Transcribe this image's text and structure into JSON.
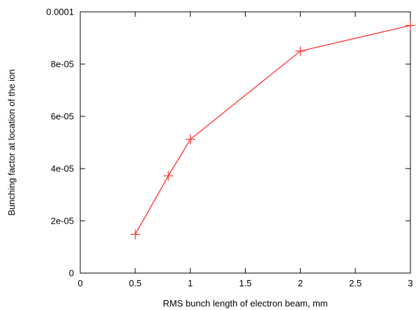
{
  "chart_data": {
    "type": "line",
    "title": "",
    "xlabel": "RMS bunch length of electron beam, mm",
    "ylabel": "Bunching factor at location of the ion",
    "xlim": [
      0,
      3
    ],
    "ylim": [
      0,
      0.0001
    ],
    "x_ticks": [
      0,
      0.5,
      1,
      1.5,
      2,
      2.5,
      3
    ],
    "x_tick_labels": [
      "0",
      "0.5",
      "1",
      "1.5",
      "2",
      "2.5",
      "3"
    ],
    "y_ticks": [
      0,
      2e-05,
      4e-05,
      6e-05,
      8e-05,
      0.0001
    ],
    "y_tick_labels": [
      "0",
      "2e-05",
      "4e-05",
      "6e-05",
      "8e-05",
      "0.0001"
    ],
    "grid": false,
    "legend": "none",
    "series": [
      {
        "color": "#ff3030",
        "marker": "plus",
        "x": [
          0.5,
          0.8,
          1.0,
          2.0,
          3.0
        ],
        "y": [
          1.48e-05,
          3.72e-05,
          5.12e-05,
          8.5e-05,
          9.48e-05
        ]
      }
    ]
  }
}
